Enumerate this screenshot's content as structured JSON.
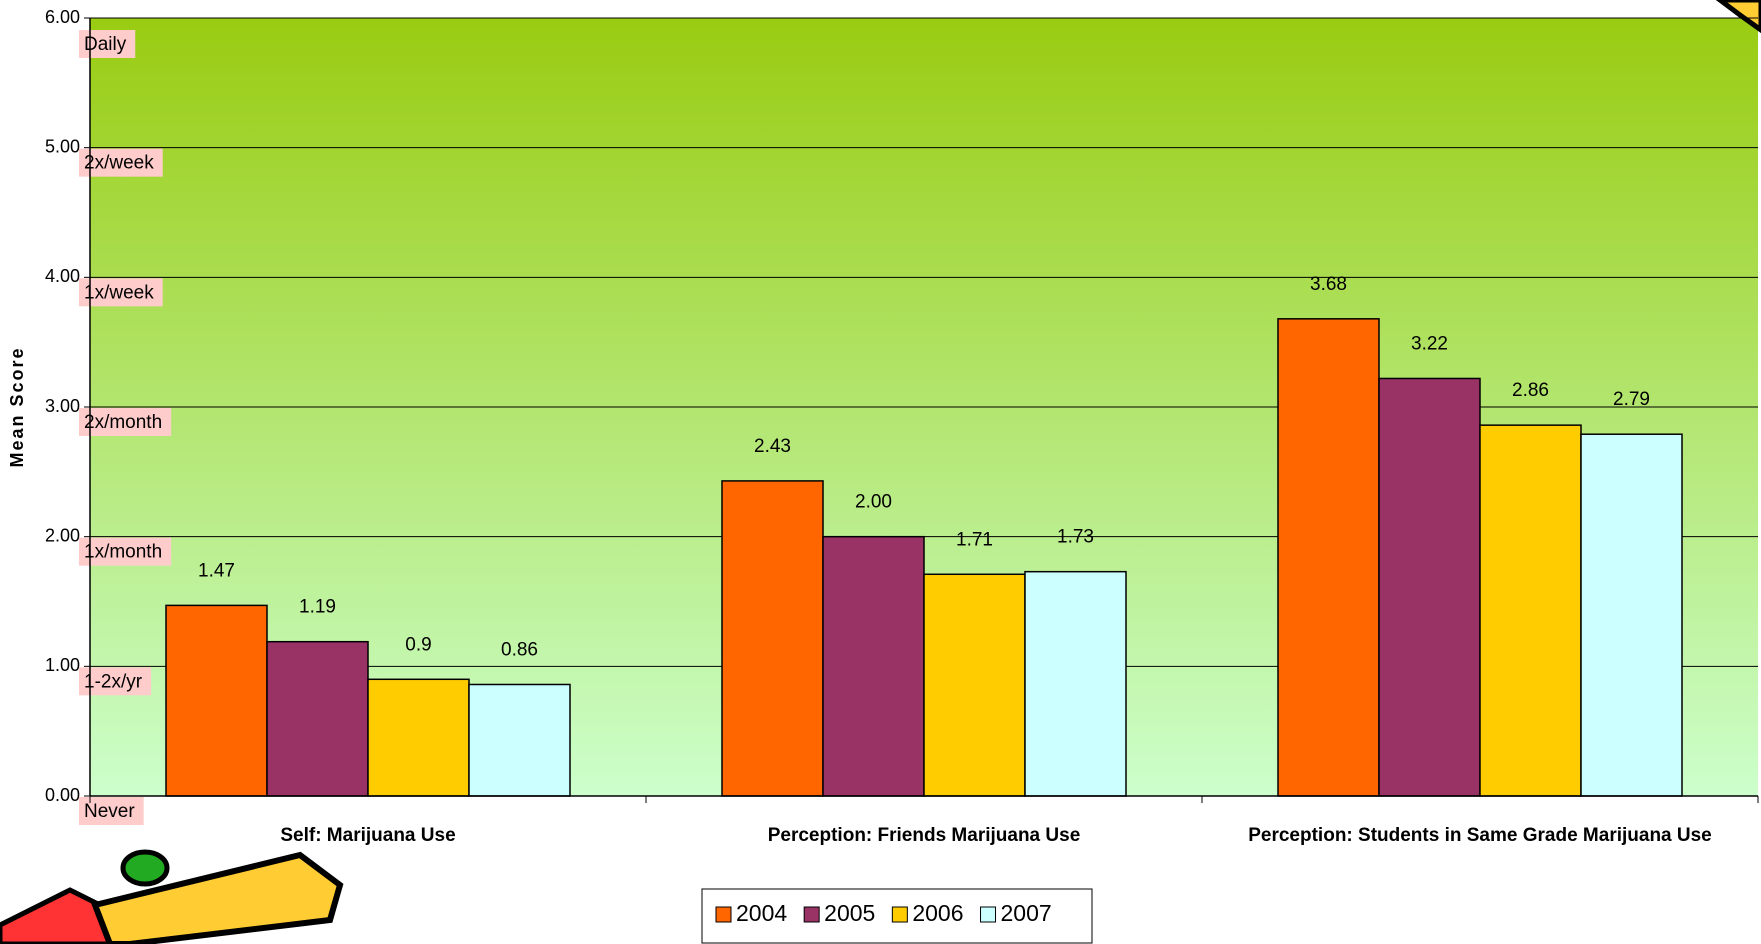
{
  "chart_data": {
    "type": "bar",
    "y_axis_label": "Mean Score",
    "categories": [
      "Self: Marijuana Use",
      "Perception: Friends Marijuana Use",
      "Perception: Students in Same Grade Marijuana Use"
    ],
    "series": [
      {
        "name": "2004",
        "color": "#ff6600",
        "values": [
          1.47,
          2.43,
          3.68
        ]
      },
      {
        "name": "2005",
        "color": "#993366",
        "values": [
          1.19,
          2.0,
          3.22
        ],
        "value_labels": [
          "1.19",
          "2.00",
          "3.22"
        ]
      },
      {
        "name": "2006",
        "color": "#ffcc00",
        "values": [
          0.9,
          1.71,
          2.86
        ]
      },
      {
        "name": "2007",
        "color": "#ccffff",
        "values": [
          0.86,
          1.73,
          2.79
        ]
      }
    ],
    "ylim": [
      0,
      6
    ],
    "yticks": [
      {
        "value": 0,
        "label": "0.00"
      },
      {
        "value": 1,
        "label": "1.00"
      },
      {
        "value": 2,
        "label": "2.00"
      },
      {
        "value": 3,
        "label": "3.00"
      },
      {
        "value": 4,
        "label": "4.00"
      },
      {
        "value": 5,
        "label": "5.00"
      },
      {
        "value": 6,
        "label": "6.00"
      }
    ],
    "y_level_labels": [
      "Never",
      "1-2x/yr",
      "1x/month",
      "2x/month",
      "1x/week",
      "2x/week",
      "Daily"
    ],
    "grid": true
  }
}
